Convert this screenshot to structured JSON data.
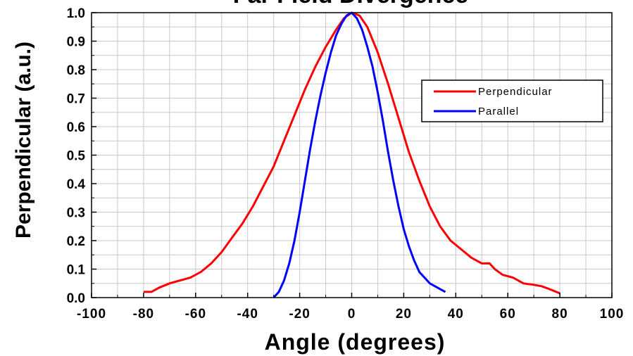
{
  "chart_data": {
    "type": "line",
    "title": "Far Field Divergence",
    "xlabel": "Angle (degrees)",
    "ylabel": "Perpendicular (a.u.)",
    "xlim": [
      -100,
      100
    ],
    "ylim": [
      0.0,
      1.0
    ],
    "x_ticks": [
      "-100",
      "-80",
      "-60",
      "-40",
      "-20",
      "0",
      "20",
      "40",
      "60",
      "80",
      "100"
    ],
    "y_ticks": [
      "0.0",
      "0.1",
      "0.2",
      "0.3",
      "0.4",
      "0.5",
      "0.6",
      "0.7",
      "0.8",
      "0.9",
      "1.0"
    ],
    "grid": true,
    "legend_position": "top-right",
    "series": [
      {
        "name": "Perpendicular",
        "color": "#ff0000",
        "x": [
          -80,
          -77,
          -74,
          -70,
          -66,
          -62,
          -58,
          -54,
          -50,
          -46,
          -42,
          -38,
          -34,
          -30,
          -26,
          -22,
          -18,
          -14,
          -10,
          -6,
          -3,
          0,
          3,
          6,
          10,
          14,
          18,
          22,
          26,
          30,
          34,
          38,
          42,
          46,
          50,
          53,
          55,
          58,
          62,
          66,
          70,
          73,
          76,
          80
        ],
        "y": [
          0.02,
          0.02,
          0.035,
          0.05,
          0.06,
          0.07,
          0.09,
          0.12,
          0.16,
          0.21,
          0.26,
          0.32,
          0.39,
          0.46,
          0.55,
          0.64,
          0.73,
          0.81,
          0.88,
          0.94,
          0.98,
          1.0,
          0.99,
          0.95,
          0.86,
          0.75,
          0.63,
          0.51,
          0.41,
          0.32,
          0.25,
          0.2,
          0.17,
          0.14,
          0.12,
          0.12,
          0.1,
          0.08,
          0.07,
          0.05,
          0.045,
          0.04,
          0.03,
          0.015
        ]
      },
      {
        "name": "Parallel",
        "color": "#0000ff",
        "x": [
          -30,
          -28,
          -26,
          -24,
          -22,
          -20,
          -18,
          -16,
          -14,
          -12,
          -10,
          -8,
          -6,
          -4,
          -2,
          0,
          2,
          4,
          6,
          8,
          10,
          12,
          14,
          16,
          18,
          20,
          22,
          24,
          26,
          28,
          30,
          32,
          34,
          36
        ],
        "y": [
          0.0,
          0.02,
          0.06,
          0.12,
          0.2,
          0.3,
          0.41,
          0.52,
          0.62,
          0.71,
          0.79,
          0.86,
          0.92,
          0.96,
          0.99,
          1.0,
          0.98,
          0.94,
          0.88,
          0.81,
          0.72,
          0.62,
          0.51,
          0.41,
          0.32,
          0.24,
          0.18,
          0.13,
          0.09,
          0.07,
          0.05,
          0.04,
          0.03,
          0.02
        ]
      }
    ]
  }
}
